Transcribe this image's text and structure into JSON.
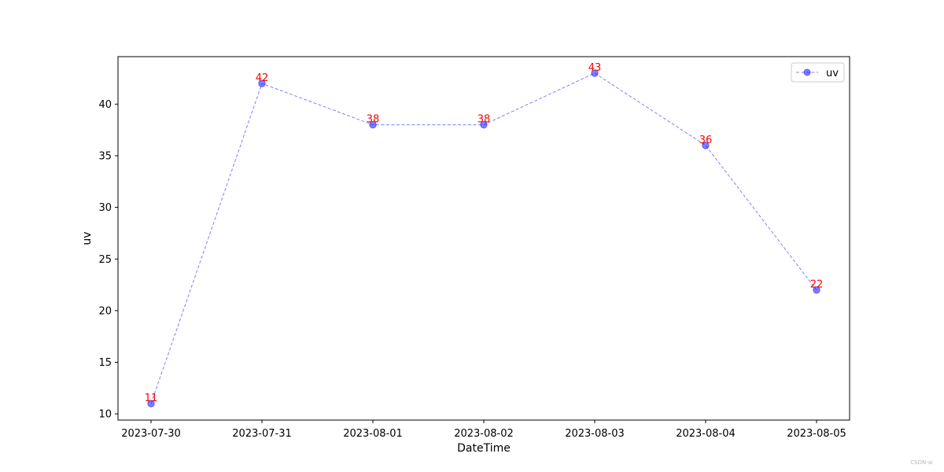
{
  "chart_data": {
    "type": "line",
    "title": "",
    "xlabel": "DateTime",
    "ylabel": "uv",
    "categories": [
      "2023-07-30",
      "2023-07-31",
      "2023-08-01",
      "2023-08-02",
      "2023-08-03",
      "2023-08-04",
      "2023-08-05"
    ],
    "series": [
      {
        "name": "uv",
        "values": [
          11,
          42,
          38,
          38,
          43,
          36,
          22
        ],
        "color": "#0000ff",
        "line_style": "dashed",
        "marker": "circle"
      }
    ],
    "data_label_color": "#ff0000",
    "ylim": [
      9.4,
      44.6
    ],
    "yticks": [
      10,
      15,
      20,
      25,
      30,
      35,
      40
    ],
    "grid": false,
    "legend_position": "top-right"
  },
  "watermark": "CSDN-ai"
}
